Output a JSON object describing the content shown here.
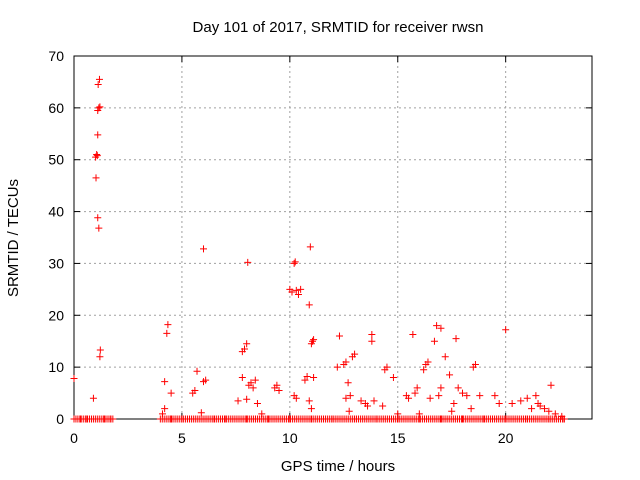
{
  "chart_data": {
    "type": "scatter",
    "title": "Day 101 of 2017, SRMTID for receiver rwsn",
    "xlabel": "GPS time / hours",
    "ylabel": "SRMTID / TECUs",
    "xlim": [
      0,
      24
    ],
    "ylim": [
      0,
      70
    ],
    "xticks": [
      0,
      5,
      10,
      15,
      20
    ],
    "yticks": [
      0,
      10,
      20,
      30,
      40,
      50,
      60,
      70
    ],
    "grid": true,
    "marker": "+",
    "color": "#ff0000",
    "points": [
      [
        0.0,
        7.8
      ],
      [
        0.9,
        4.0
      ],
      [
        1.0,
        50.5
      ],
      [
        1.05,
        51.0
      ],
      [
        1.08,
        50.8
      ],
      [
        1.02,
        46.5
      ],
      [
        1.1,
        38.8
      ],
      [
        1.15,
        36.8
      ],
      [
        1.1,
        54.8
      ],
      [
        1.1,
        59.5
      ],
      [
        1.15,
        60.0
      ],
      [
        1.2,
        60.2
      ],
      [
        1.12,
        64.5
      ],
      [
        1.18,
        65.5
      ],
      [
        1.2,
        12.0
      ],
      [
        1.22,
        13.3
      ],
      [
        4.2,
        7.2
      ],
      [
        4.3,
        16.5
      ],
      [
        4.35,
        18.2
      ],
      [
        4.5,
        5.0
      ],
      [
        4.2,
        2.0
      ],
      [
        4.1,
        1.0
      ],
      [
        5.5,
        5.0
      ],
      [
        5.6,
        5.5
      ],
      [
        5.7,
        9.2
      ],
      [
        6.0,
        7.2
      ],
      [
        6.1,
        7.5
      ],
      [
        5.9,
        1.2
      ],
      [
        6.0,
        32.8
      ],
      [
        7.6,
        3.5
      ],
      [
        7.8,
        13.0
      ],
      [
        7.9,
        13.5
      ],
      [
        8.0,
        14.5
      ],
      [
        8.05,
        30.2
      ],
      [
        7.8,
        8.0
      ],
      [
        8.1,
        6.5
      ],
      [
        8.2,
        7.0
      ],
      [
        8.3,
        6.0
      ],
      [
        8.4,
        7.5
      ],
      [
        8.0,
        3.8
      ],
      [
        8.5,
        3.0
      ],
      [
        8.7,
        1.0
      ],
      [
        9.3,
        6.0
      ],
      [
        9.4,
        6.5
      ],
      [
        9.5,
        5.5
      ],
      [
        10.0,
        25.0
      ],
      [
        10.1,
        24.5
      ],
      [
        10.2,
        30.0
      ],
      [
        10.25,
        30.3
      ],
      [
        10.3,
        24.8
      ],
      [
        10.4,
        24.0
      ],
      [
        10.5,
        25.0
      ],
      [
        10.2,
        4.5
      ],
      [
        10.3,
        4.0
      ],
      [
        10.7,
        7.5
      ],
      [
        10.8,
        8.2
      ],
      [
        10.9,
        22.0
      ],
      [
        11.0,
        14.5
      ],
      [
        11.05,
        15.0
      ],
      [
        11.1,
        15.3
      ],
      [
        10.95,
        33.2
      ],
      [
        11.1,
        8.0
      ],
      [
        10.9,
        3.5
      ],
      [
        11.0,
        2.0
      ],
      [
        12.2,
        10.0
      ],
      [
        12.3,
        16.0
      ],
      [
        12.5,
        10.5
      ],
      [
        12.6,
        11.0
      ],
      [
        12.7,
        7.0
      ],
      [
        12.8,
        4.5
      ],
      [
        12.9,
        12.0
      ],
      [
        13.0,
        12.5
      ],
      [
        12.6,
        4.0
      ],
      [
        12.75,
        1.5
      ],
      [
        13.3,
        3.5
      ],
      [
        13.5,
        3.0
      ],
      [
        13.6,
        2.5
      ],
      [
        13.8,
        16.3
      ],
      [
        13.8,
        15.0
      ],
      [
        13.9,
        3.5
      ],
      [
        14.3,
        2.5
      ],
      [
        14.4,
        9.5
      ],
      [
        14.5,
        10.0
      ],
      [
        14.8,
        8.0
      ],
      [
        15.0,
        1.0
      ],
      [
        15.4,
        4.5
      ],
      [
        15.5,
        4.0
      ],
      [
        15.7,
        16.3
      ],
      [
        15.8,
        5.0
      ],
      [
        15.9,
        6.0
      ],
      [
        16.0,
        1.0
      ],
      [
        16.2,
        9.5
      ],
      [
        16.3,
        10.5
      ],
      [
        16.4,
        11.0
      ],
      [
        16.5,
        4.0
      ],
      [
        16.7,
        15.0
      ],
      [
        16.8,
        18.0
      ],
      [
        17.0,
        17.5
      ],
      [
        16.9,
        4.5
      ],
      [
        17.2,
        12.0
      ],
      [
        17.0,
        6.0
      ],
      [
        17.4,
        8.5
      ],
      [
        17.6,
        3.0
      ],
      [
        17.7,
        15.5
      ],
      [
        17.5,
        1.5
      ],
      [
        17.8,
        6.0
      ],
      [
        18.0,
        5.0
      ],
      [
        18.2,
        4.5
      ],
      [
        18.4,
        2.0
      ],
      [
        18.5,
        10.0
      ],
      [
        18.6,
        10.5
      ],
      [
        18.8,
        4.5
      ],
      [
        19.5,
        4.5
      ],
      [
        19.7,
        3.0
      ],
      [
        20.0,
        17.2
      ],
      [
        20.3,
        3.0
      ],
      [
        20.7,
        3.5
      ],
      [
        21.0,
        4.0
      ],
      [
        21.2,
        2.0
      ],
      [
        21.4,
        4.5
      ],
      [
        21.5,
        3.0
      ],
      [
        21.6,
        2.5
      ],
      [
        21.8,
        2.0
      ],
      [
        22.0,
        1.5
      ],
      [
        22.1,
        6.5
      ],
      [
        22.3,
        1.0
      ],
      [
        22.6,
        0.5
      ],
      [
        0.3,
        0.0
      ],
      [
        0.6,
        0.0
      ],
      [
        1.4,
        0.0
      ],
      [
        1.7,
        0.0
      ],
      [
        4.5,
        0.0
      ],
      [
        5.0,
        0.0
      ],
      [
        6.5,
        0.0
      ],
      [
        7.0,
        0.0
      ],
      [
        8.0,
        0.0
      ],
      [
        9.0,
        0.0
      ],
      [
        10.0,
        0.0
      ],
      [
        11.0,
        0.0
      ],
      [
        12.0,
        0.0
      ],
      [
        13.0,
        0.0
      ],
      [
        14.0,
        0.0
      ],
      [
        15.0,
        0.0
      ],
      [
        16.0,
        0.0
      ],
      [
        17.0,
        0.0
      ],
      [
        18.0,
        0.0
      ],
      [
        19.0,
        0.0
      ],
      [
        20.0,
        0.0
      ],
      [
        21.0,
        0.0
      ],
      [
        22.0,
        0.0
      ],
      [
        22.7,
        0.0
      ]
    ],
    "zero_segments": [
      [
        0.0,
        1.8
      ],
      [
        4.0,
        22.8
      ]
    ]
  }
}
